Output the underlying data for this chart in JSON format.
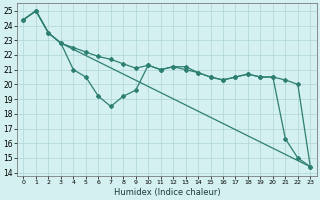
{
  "xlabel": "Humidex (Indice chaleur)",
  "background_color": "#d4f0f0",
  "grid_color": "#aed4d4",
  "line_color": "#2d7f72",
  "xlim": [
    -0.5,
    23.5
  ],
  "ylim": [
    13.8,
    25.5
  ],
  "yticks": [
    14,
    15,
    16,
    17,
    18,
    19,
    20,
    21,
    22,
    23,
    24,
    25
  ],
  "xticks": [
    0,
    1,
    2,
    3,
    4,
    5,
    6,
    7,
    8,
    9,
    10,
    11,
    12,
    13,
    14,
    15,
    16,
    17,
    18,
    19,
    20,
    21,
    22,
    23
  ],
  "line1_x": [
    0,
    1,
    2,
    3,
    4,
    5,
    6,
    7,
    8,
    9,
    10,
    11,
    12,
    13,
    14,
    15,
    16,
    17,
    18,
    19,
    20,
    21,
    22,
    23
  ],
  "line1_y": [
    24.4,
    25.0,
    23.5,
    22.8,
    21.0,
    20.5,
    19.2,
    18.5,
    19.2,
    19.6,
    21.3,
    21.0,
    21.2,
    21.2,
    20.8,
    20.5,
    20.3,
    20.5,
    20.7,
    20.5,
    20.5,
    16.3,
    15.0,
    14.4
  ],
  "line2_x": [
    0,
    1,
    2,
    3,
    4,
    5,
    6,
    7,
    8,
    9,
    10,
    11,
    12,
    13,
    14,
    15,
    16,
    17,
    18,
    19,
    20,
    21,
    22,
    23
  ],
  "line2_y": [
    24.4,
    25.0,
    23.5,
    22.8,
    22.5,
    22.2,
    21.9,
    21.7,
    21.4,
    21.1,
    21.3,
    21.0,
    21.2,
    21.0,
    20.8,
    20.5,
    20.3,
    20.5,
    20.7,
    20.5,
    20.5,
    20.3,
    20.0,
    14.4
  ],
  "line3_x": [
    0,
    1,
    2,
    3,
    23
  ],
  "line3_y": [
    24.4,
    25.0,
    23.5,
    22.8,
    14.4
  ]
}
